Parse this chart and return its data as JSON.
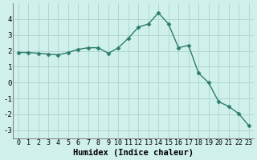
{
  "xlabel": "Humidex (Indice chaleur)",
  "x_values": [
    0,
    1,
    2,
    3,
    4,
    5,
    6,
    7,
    8,
    9,
    10,
    11,
    12,
    13,
    14,
    15,
    16,
    17,
    18,
    19,
    20,
    21,
    22,
    23
  ],
  "y_values": [
    1.9,
    1.9,
    1.85,
    1.8,
    1.75,
    1.9,
    2.1,
    2.2,
    2.2,
    1.85,
    2.2,
    2.8,
    3.5,
    3.7,
    4.4,
    3.7,
    2.2,
    2.35,
    0.6,
    0.0,
    -1.2,
    -1.5,
    -1.95,
    -2.7
  ],
  "line_color": "#2e7d6e",
  "marker": "D",
  "marker_size": 2.5,
  "line_width": 1.0,
  "background_color": "#cff0eb",
  "grid_color": "#aad4cc",
  "ylim": [
    -3.5,
    5.0
  ],
  "yticks": [
    -3,
    -2,
    -1,
    0,
    1,
    2,
    3,
    4
  ],
  "xlim": [
    -0.5,
    23.5
  ],
  "xtick_fontsize": 6.0,
  "ytick_fontsize": 6.5,
  "xlabel_fontsize": 7.5,
  "spine_color": "#888888"
}
